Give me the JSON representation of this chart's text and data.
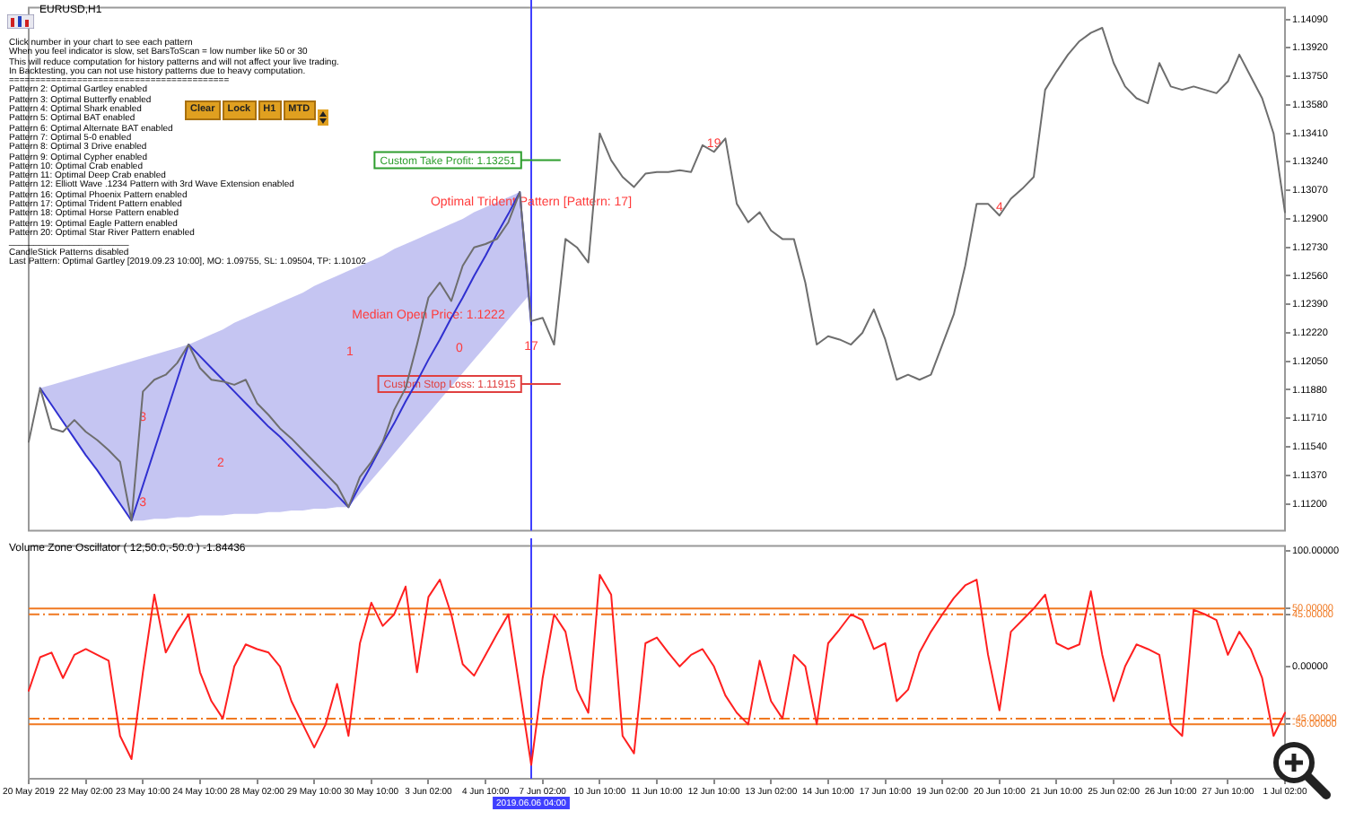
{
  "chart_data": [
    {
      "type": "line",
      "title": "EURUSD,H1",
      "tick_labels": "y",
      "categories": [
        "20 May 2019",
        null,
        null,
        null,
        null,
        "22 May 02:00",
        null,
        null,
        null,
        null,
        "23 May 10:00",
        null,
        null,
        null,
        null,
        "24 May 10:00",
        null,
        null,
        null,
        null,
        "28 May 02:00",
        null,
        null,
        null,
        null,
        "29 May 10:00",
        null,
        null,
        null,
        null,
        "30 May 10:00",
        null,
        null,
        null,
        null,
        "3 Jun 02:00",
        null,
        null,
        null,
        null,
        "4 Jun 10:00",
        null,
        null,
        null,
        "2019.06.06 04:00",
        "7 Jun 02:00",
        null,
        null,
        null,
        null,
        "10 Jun 10:00",
        null,
        null,
        null,
        null,
        "11 Jun 10:00",
        null,
        null,
        null,
        null,
        "12 Jun 10:00",
        null,
        null,
        null,
        null,
        "13 Jun 02:00",
        null,
        null,
        null,
        null,
        "14 Jun 10:00",
        null,
        null,
        null,
        null,
        "17 Jun 10:00",
        null,
        null,
        null,
        null,
        "19 Jun 02:00",
        null,
        null,
        null,
        null,
        "20 Jun 10:00",
        null,
        null,
        null,
        null,
        "21 Jun 10:00",
        null,
        null,
        null,
        null,
        "25 Jun 02:00",
        null,
        null,
        null,
        null,
        "26 Jun 10:00",
        null,
        null,
        null,
        null,
        "27 Jun 10:00",
        null,
        null,
        null,
        null,
        "1 Jul 02:00"
      ],
      "series": [
        {
          "color": "#6e6e6e",
          "values": [
            1.1157,
            1.1189,
            1.1165,
            1.1163,
            1.117,
            1.1163,
            1.1158,
            1.1152,
            1.1145,
            1.111,
            1.1187,
            1.1194,
            1.1197,
            1.1204,
            1.1215,
            1.1201,
            1.1194,
            1.1193,
            1.1191,
            1.1194,
            1.118,
            1.1173,
            1.1165,
            1.1159,
            1.1152,
            1.1145,
            1.1138,
            1.1131,
            1.1118,
            1.1136,
            1.1145,
            1.1157,
            1.1176,
            1.1189,
            1.1215,
            1.1243,
            1.1252,
            1.1241,
            1.1262,
            1.1273,
            1.1275,
            1.1278,
            1.1288,
            1.1306,
            1.1229,
            1.1231,
            1.1215,
            1.1278,
            1.1273,
            1.1264,
            1.1341,
            1.1325,
            1.1315,
            1.1309,
            1.1317,
            1.1318,
            1.1318,
            1.1319,
            1.1318,
            1.1334,
            1.133,
            1.1338,
            1.1299,
            1.1288,
            1.1294,
            1.1283,
            1.1278,
            1.1278,
            1.1252,
            1.1215,
            1.122,
            1.1218,
            1.1215,
            1.1222,
            1.1236,
            1.1218,
            1.1194,
            1.1197,
            1.1194,
            1.1197,
            1.1215,
            1.1233,
            1.1262,
            1.1299,
            1.1299,
            1.1292,
            1.1302,
            1.1308,
            1.1315,
            1.1367,
            1.1378,
            1.1388,
            1.1396,
            1.1401,
            1.1404,
            1.1383,
            1.1369,
            1.1362,
            1.1359,
            1.1383,
            1.1369,
            1.1367,
            1.1369,
            1.1367,
            1.1365,
            1.1372,
            1.1388,
            1.1375,
            1.1362,
            1.1341,
            1.1294
          ]
        },
        {
          "color": "#3030d0",
          "values": [
            null,
            1.1189,
            1.1179,
            1.1169,
            1.1159,
            1.1149,
            1.114,
            1.113,
            1.112,
            1.111,
            1.1131,
            1.1152,
            1.1173,
            1.1194,
            1.1215,
            1.1208,
            1.1201,
            1.1194,
            1.1187,
            1.118,
            1.1173,
            1.1166,
            1.116,
            1.1153,
            1.1146,
            1.1139,
            1.1132,
            1.1125,
            1.1118,
            1.1131,
            1.1143,
            1.1156,
            1.1168,
            1.1181,
            1.1193,
            1.1206,
            1.1218,
            1.1231,
            1.1243,
            1.1256,
            1.1268,
            1.1281,
            1.1293,
            1.1306,
            1.1227,
            null,
            null,
            null,
            null,
            null,
            null,
            null,
            null,
            null,
            null,
            null,
            null,
            null,
            null,
            null,
            null,
            null,
            null,
            null,
            null,
            null,
            null,
            null,
            null,
            null,
            null,
            null,
            null,
            null,
            null,
            null,
            null,
            null,
            null,
            null,
            null,
            null,
            null,
            null,
            null,
            null,
            null,
            null,
            null,
            null,
            null,
            null,
            null,
            null,
            null,
            null,
            null,
            null,
            null,
            null,
            null,
            null,
            null,
            null,
            null,
            null,
            null,
            null,
            null,
            null,
            null
          ],
          "upper": [
            null,
            1.1189,
            1.1191,
            1.1193,
            1.1195,
            1.1197,
            1.1199,
            1.1201,
            1.1203,
            1.1205,
            1.1207,
            1.1209,
            1.1211,
            1.1213,
            1.1215,
            1.1218,
            1.1221,
            1.1224,
            1.1228,
            1.1231,
            1.1234,
            1.1237,
            1.124,
            1.1243,
            1.1246,
            1.125,
            1.1253,
            1.1256,
            1.1259,
            1.1262,
            1.1265,
            1.1268,
            1.1272,
            1.1275,
            1.1278,
            1.1281,
            1.1284,
            1.1287,
            1.129,
            1.1294,
            1.1297,
            1.13,
            1.1303,
            1.1306,
            1.1246,
            null,
            null,
            null,
            null,
            null,
            null,
            null,
            null,
            null,
            null,
            null,
            null,
            null,
            null,
            null,
            null,
            null,
            null,
            null,
            null,
            null,
            null,
            null,
            null,
            null,
            null,
            null,
            null,
            null,
            null,
            null,
            null,
            null,
            null,
            null,
            null,
            null,
            null,
            null,
            null,
            null,
            null,
            null,
            null,
            null,
            null,
            null,
            null,
            null,
            null,
            null,
            null,
            null,
            null,
            null,
            null,
            null,
            null,
            null,
            null,
            null,
            null,
            null,
            null,
            null,
            null
          ],
          "lower": [
            null,
            1.1189,
            1.1179,
            1.1169,
            1.1159,
            1.1149,
            1.114,
            1.113,
            1.112,
            1.111,
            1.111,
            1.1111,
            1.1111,
            1.1112,
            1.1112,
            1.1113,
            1.1113,
            1.1113,
            1.1114,
            1.1114,
            1.1114,
            1.1115,
            1.1115,
            1.1116,
            1.1116,
            1.1117,
            1.1117,
            1.1118,
            1.1118,
            1.1126,
            1.1134,
            1.1142,
            1.115,
            1.1158,
            1.1166,
            1.1174,
            1.1182,
            1.119,
            1.1198,
            1.1206,
            1.1214,
            1.1222,
            1.123,
            1.1238,
            1.1246,
            null,
            null,
            null,
            null,
            null,
            null,
            null,
            null,
            null,
            null,
            null,
            null,
            null,
            null,
            null,
            null,
            null,
            null,
            null,
            null,
            null,
            null,
            null,
            null,
            null,
            null,
            null,
            null,
            null,
            null,
            null,
            null,
            null,
            null,
            null,
            null,
            null,
            null,
            null,
            null,
            null,
            null,
            null,
            null,
            null,
            null,
            null,
            null,
            null,
            null,
            null,
            null,
            null,
            null,
            null,
            null,
            null,
            null,
            null,
            null,
            null,
            null,
            null,
            null,
            null,
            null
          ]
        }
      ],
      "ylim": [
        1.1104,
        1.1416
      ],
      "yticks": [
        {
          "value": 1.1409,
          "label": "1.14090"
        },
        {
          "value": 1.1392,
          "label": "1.13920"
        },
        {
          "value": 1.1375,
          "label": "1.13750"
        },
        {
          "value": 1.1358,
          "label": "1.13580"
        },
        {
          "value": 1.1341,
          "label": "1.13410"
        },
        {
          "value": 1.1324,
          "label": "1.13240"
        },
        {
          "value": 1.1307,
          "label": "1.13070"
        },
        {
          "value": 1.129,
          "label": "1.12900"
        },
        {
          "value": 1.1273,
          "label": "1.12730"
        },
        {
          "value": 1.1256,
          "label": "1.12560"
        },
        {
          "value": 1.1239,
          "label": "1.12390"
        },
        {
          "value": 1.1222,
          "label": "1.12220"
        },
        {
          "value": 1.1205,
          "label": "1.12050"
        },
        {
          "value": 1.1188,
          "label": "1.11880"
        },
        {
          "value": 1.1171,
          "label": "1.11710"
        },
        {
          "value": 1.1154,
          "label": "1.11540"
        },
        {
          "value": 1.1137,
          "label": "1.11370"
        },
        {
          "value": 1.112,
          "label": "1.11200"
        }
      ],
      "ref_lines": [
        {
          "axis": "x",
          "value": "2019.06.06 04:00",
          "color": "#4040ff"
        },
        {
          "axis": "y",
          "value": 1.13251,
          "label": "Custom Take Profit: 1.13251",
          "color": "#2e9e2e"
        },
        {
          "axis": "y",
          "value": 1.11915,
          "label": "Custom Stop Loss: 1.11915",
          "color": "#e04040"
        }
      ],
      "annotations": [
        "Clear",
        "Lock",
        "H1",
        "MTD",
        "Click number in your chart to see each pattern",
        "When you feel indicator is slow, set BarsToScan = low number like 50 or 30",
        "This will reduce computation for history patterns and will not affect your live trading.",
        "In Backtesting, you can not use history patterns due to heavy computation.",
        "==========================================",
        "Pattern 2: Optimal Gartley enabled",
        "Pattern 3: Optimal Butterfly enabled",
        "Pattern 4: Optimal Shark enabled",
        "Pattern 5: Optimal BAT enabled",
        "Pattern 6: Optimal Alternate BAT enabled",
        "Pattern 7: Optimal 5-0 enabled",
        "Pattern 8: Optimal 3 Drive enabled",
        "Pattern 9: Optimal Cypher enabled",
        "Pattern 10: Optimal Crab enabled",
        "Pattern 11: Optimal Deep Crab enabled",
        "Pattern 12: Elliott Wave .1234 Pattern with 3rd Wave Extension enabled",
        "Pattern 16: Optimal Phoenix Pattern enabled",
        "Pattern 17: Optimal Trident Pattern enabled",
        "Pattern 18: Optimal Horse Pattern enabled",
        "Pattern 19: Optimal Eagle Pattern enabled",
        "Pattern 20: Optimal Star River Pattern enabled",
        "________________________",
        "CandleStick Patterns disabled",
        "Last Pattern: Optimal Gartley [2019.09.23 10:00], MO: 1.09755, SL: 1.09504, TP: 1.10102",
        "2",
        "1",
        "0",
        {
          "text": "3",
          "x": "23 May 10:00",
          "y": 1.1167
        },
        {
          "text": "3",
          "x": "23 May 10:00",
          "y": 1.1116
        },
        {
          "text": "Median Open Price: 1.1222",
          "x": "3 Jun 02:00",
          "y": 1.1228
        },
        {
          "text": "17",
          "x": "2019.06.06 04:00",
          "y": 1.1209
        },
        {
          "text": "Optimal Trident Pattern [Pattern: 17]",
          "x": "2019.06.06 04:00",
          "y": 1.1295
        },
        {
          "text": "19",
          "x": "12 Jun 10:00",
          "y": 1.133
        },
        {
          "text": "4",
          "x": "20 Jun 10:00",
          "y": 1.1292
        }
      ]
    },
    {
      "type": "line",
      "title": "Volume Zone Oscillator ( 12,50.0,-50.0 ) -1.84436",
      "categories": [
        "20 May 2019",
        null,
        null,
        null,
        null,
        "22 May 02:00",
        null,
        null,
        null,
        null,
        "23 May 10:00",
        null,
        null,
        null,
        null,
        "24 May 10:00",
        null,
        null,
        null,
        null,
        "28 May 02:00",
        null,
        null,
        null,
        null,
        "29 May 10:00",
        null,
        null,
        null,
        null,
        "30 May 10:00",
        null,
        null,
        null,
        null,
        "3 Jun 02:00",
        null,
        null,
        null,
        null,
        "4 Jun 10:00",
        null,
        null,
        null,
        "2019.06.06 04:00",
        "7 Jun 02:00",
        null,
        null,
        null,
        null,
        "10 Jun 10:00",
        null,
        null,
        null,
        null,
        "11 Jun 10:00",
        null,
        null,
        null,
        null,
        "12 Jun 10:00",
        null,
        null,
        null,
        null,
        "13 Jun 02:00",
        null,
        null,
        null,
        null,
        "14 Jun 10:00",
        null,
        null,
        null,
        null,
        "17 Jun 10:00",
        null,
        null,
        null,
        null,
        "19 Jun 02:00",
        null,
        null,
        null,
        null,
        "20 Jun 10:00",
        null,
        null,
        null,
        null,
        "21 Jun 10:00",
        null,
        null,
        null,
        null,
        "25 Jun 02:00",
        null,
        null,
        null,
        null,
        "26 Jun 10:00",
        null,
        null,
        null,
        null,
        "27 Jun 10:00",
        null,
        null,
        null,
        null,
        "1 Jul 02:00"
      ],
      "series": [
        {
          "color": "#ff2020",
          "values": [
            -21,
            8,
            12,
            -10,
            10,
            15,
            10,
            5,
            -60,
            -80,
            -5,
            62,
            12,
            30,
            45,
            -5,
            -30,
            -45,
            0,
            19,
            15,
            12,
            0,
            -30,
            -50,
            -70,
            -50,
            -15,
            -60,
            20,
            55,
            35,
            45,
            69,
            -5,
            60,
            75,
            45,
            2,
            -8,
            10,
            28,
            45,
            -20,
            -85,
            -10,
            45,
            30,
            -20,
            -40,
            79,
            62,
            -60,
            -75,
            20,
            25,
            12,
            0,
            10,
            15,
            0,
            -25,
            -40,
            -50,
            5,
            -30,
            -45,
            10,
            0,
            -50,
            20,
            32,
            45,
            40,
            15,
            20,
            -30,
            -20,
            12,
            30,
            45,
            59,
            70,
            75,
            10,
            -38,
            30,
            40,
            50,
            62,
            20,
            15,
            19,
            65,
            10,
            -30,
            0,
            19,
            15,
            10,
            -50,
            -60,
            49,
            45,
            40,
            10,
            30,
            15,
            -10,
            -60,
            -40
          ]
        }
      ],
      "ylim": [
        -97,
        104
      ],
      "yticks": [
        {
          "value": 100,
          "label": "100.00000"
        },
        {
          "value": 50,
          "label": "50.00000"
        },
        {
          "value": 45,
          "label": "45.00000"
        },
        {
          "value": 0,
          "label": "0.00000"
        },
        {
          "value": -45,
          "label": "-45.00000"
        },
        {
          "value": -50,
          "label": "-50.00000"
        }
      ],
      "ref_lines": [
        {
          "axis": "x",
          "value": "2019.06.06 04:00",
          "color": "#4040ff"
        },
        {
          "axis": "y",
          "value": 50,
          "color": "#f07820",
          "line_style": "solid"
        },
        {
          "axis": "y",
          "value": 45,
          "color": "#f07820",
          "line_style": "dashed"
        },
        {
          "axis": "y",
          "value": -45,
          "color": "#f07820",
          "line_style": "dashed"
        },
        {
          "axis": "y",
          "value": -50,
          "color": "#f07820",
          "line_style": "solid"
        }
      ]
    }
  ]
}
